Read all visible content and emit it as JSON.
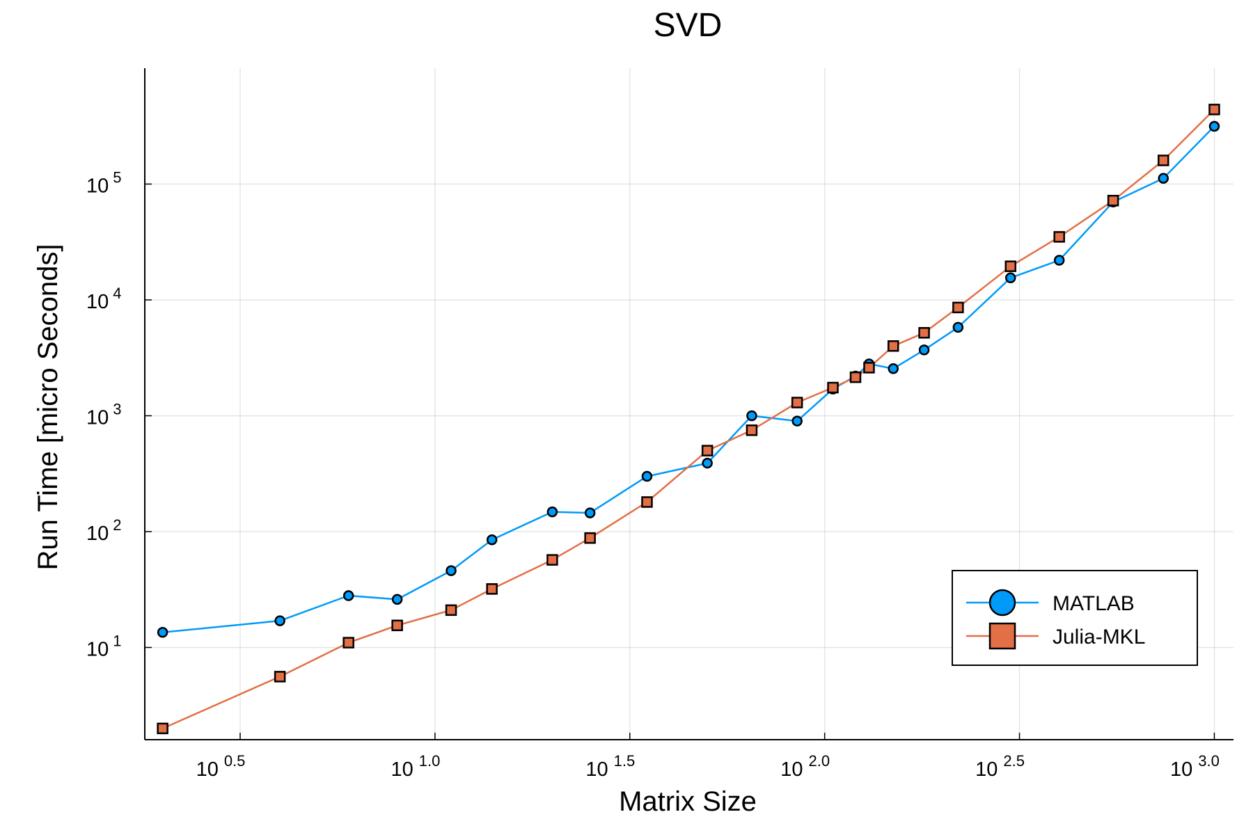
{
  "chart_data": {
    "type": "line",
    "title": "SVD",
    "xlabel": "Matrix Size",
    "ylabel": "Run Time  [micro Seconds]",
    "xscale": "log10",
    "yscale": "log10",
    "xlim": [
      1.8,
      1120
    ],
    "ylim": [
      1.6,
      1000000
    ],
    "grid": true,
    "legend_position": "bottom-right",
    "x_ticks": [
      {
        "base": "10",
        "exp": "0.5",
        "value": 3.1623
      },
      {
        "base": "10",
        "exp": "1.0",
        "value": 10
      },
      {
        "base": "10",
        "exp": "1.5",
        "value": 31.623
      },
      {
        "base": "10",
        "exp": "2.0",
        "value": 100
      },
      {
        "base": "10",
        "exp": "2.5",
        "value": 316.23
      },
      {
        "base": "10",
        "exp": "3.0",
        "value": 1000
      }
    ],
    "y_ticks": [
      {
        "base": "10",
        "exp": "1",
        "value": 10
      },
      {
        "base": "10",
        "exp": "2",
        "value": 100
      },
      {
        "base": "10",
        "exp": "3",
        "value": 1000
      },
      {
        "base": "10",
        "exp": "4",
        "value": 10000
      },
      {
        "base": "10",
        "exp": "5",
        "value": 100000
      }
    ],
    "series": [
      {
        "name": "MATLAB",
        "color": "#009AF9",
        "marker": "circle",
        "x": [
          2,
          4,
          6,
          8,
          11,
          14,
          20,
          25,
          35,
          50,
          65,
          85,
          105,
          120,
          130,
          150,
          180,
          220,
          300,
          400,
          550,
          740,
          1000
        ],
        "y": [
          13.5,
          17,
          28,
          26,
          46,
          85,
          148,
          145,
          300,
          390,
          1000,
          900,
          1700,
          2200,
          2800,
          2550,
          3700,
          5800,
          15500,
          22000,
          70000,
          112000,
          315000
        ]
      },
      {
        "name": "Julia-MKL",
        "color": "#E26F46",
        "marker": "square",
        "x": [
          2,
          4,
          6,
          8,
          11,
          14,
          20,
          25,
          35,
          50,
          65,
          85,
          105,
          120,
          130,
          150,
          180,
          220,
          300,
          400,
          550,
          740,
          1000
        ],
        "y": [
          2,
          5.6,
          11,
          15.5,
          21,
          32,
          57,
          88,
          180,
          500,
          750,
          1300,
          1750,
          2150,
          2600,
          4000,
          5200,
          8600,
          19500,
          35000,
          72000,
          160000,
          440000
        ]
      }
    ]
  }
}
